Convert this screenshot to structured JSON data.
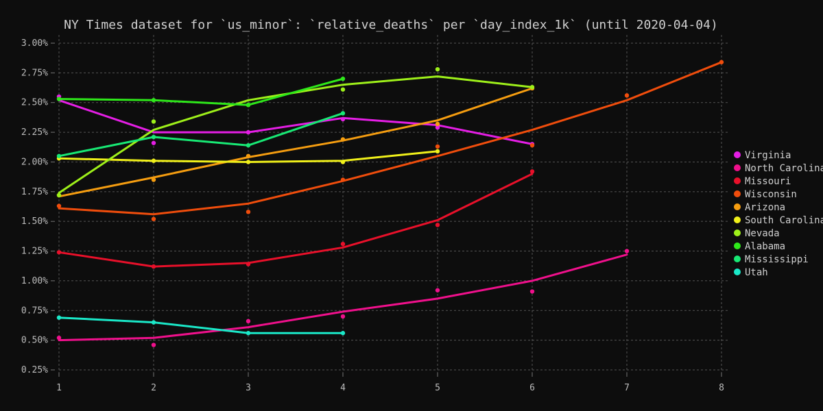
{
  "chart_data": {
    "type": "line",
    "title": "NY Times dataset for `us_minor`: `relative_deaths` per `day_index_1k` (until 2020-04-04)",
    "xlabel": "",
    "ylabel": "",
    "xlim": [
      1,
      8
    ],
    "ylim": [
      0.25,
      3.0
    ],
    "x_ticks": [
      1,
      2,
      3,
      4,
      5,
      6,
      7,
      8
    ],
    "y_ticks": [
      0.25,
      0.5,
      0.75,
      1.0,
      1.25,
      1.5,
      1.75,
      2.0,
      2.25,
      2.5,
      2.75,
      3.0
    ],
    "y_tick_labels": [
      "0.25%",
      "0.50%",
      "0.75%",
      "1.00%",
      "1.25%",
      "1.50%",
      "1.75%",
      "2.00%",
      "2.25%",
      "2.50%",
      "2.75%",
      "3.00%"
    ],
    "grid": true,
    "legend_position": "right",
    "series": [
      {
        "name": "Virginia",
        "color": "#e51ee5",
        "x": [
          1,
          2,
          3,
          4,
          5,
          6
        ],
        "points": [
          2.55,
          2.16,
          2.25,
          2.36,
          2.29,
          2.15
        ],
        "trend": [
          2.52,
          2.25,
          2.25,
          2.37,
          2.31,
          2.15
        ]
      },
      {
        "name": "North Carolina",
        "color": "#f0108c",
        "x": [
          1,
          2,
          3,
          4,
          5,
          6,
          7
        ],
        "points": [
          0.52,
          0.46,
          0.66,
          0.7,
          0.92,
          0.91,
          1.25
        ],
        "trend": [
          0.5,
          0.52,
          0.61,
          0.74,
          0.85,
          1.0,
          1.22
        ]
      },
      {
        "name": "Missouri",
        "color": "#e8102a",
        "x": [
          1,
          2,
          3,
          4,
          5,
          6
        ],
        "points": [
          1.24,
          1.12,
          1.14,
          1.31,
          1.47,
          1.92
        ],
        "trend": [
          1.24,
          1.12,
          1.15,
          1.28,
          1.51,
          1.9
        ]
      },
      {
        "name": "Wisconsin",
        "color": "#f04d0c",
        "x": [
          1,
          2,
          3,
          4,
          5,
          6,
          7,
          8
        ],
        "points": [
          1.63,
          1.52,
          1.58,
          1.85,
          2.13,
          2.14,
          2.56,
          2.84
        ],
        "trend": [
          1.61,
          1.56,
          1.65,
          1.84,
          2.05,
          2.27,
          2.52,
          2.84
        ]
      },
      {
        "name": "Arizona",
        "color": "#f59d10",
        "x": [
          1,
          2,
          3,
          4,
          5,
          6
        ],
        "points": [
          1.72,
          1.85,
          2.05,
          2.19,
          2.32,
          2.62
        ],
        "trend": [
          1.71,
          1.87,
          2.04,
          2.18,
          2.35,
          2.62
        ]
      },
      {
        "name": "South Carolina",
        "color": "#f0f01a",
        "x": [
          1,
          2,
          3,
          4,
          5
        ],
        "points": [
          2.03,
          2.01,
          2.0,
          2.0,
          2.09
        ],
        "trend": [
          2.03,
          2.01,
          2.0,
          2.01,
          2.09
        ]
      },
      {
        "name": "Nevada",
        "color": "#9ef01a",
        "x": [
          1,
          2,
          3,
          4,
          5,
          6
        ],
        "points": [
          1.72,
          2.34,
          2.48,
          2.61,
          2.78,
          2.63
        ],
        "trend": [
          1.74,
          2.27,
          2.52,
          2.65,
          2.72,
          2.63
        ]
      },
      {
        "name": "Alabama",
        "color": "#2ee81a",
        "x": [
          1,
          2,
          3,
          4
        ],
        "points": [
          2.53,
          2.52,
          2.48,
          2.7
        ],
        "trend": [
          2.53,
          2.52,
          2.48,
          2.7
        ]
      },
      {
        "name": "Mississippi",
        "color": "#18e874",
        "x": [
          1,
          2,
          3,
          4
        ],
        "points": [
          2.05,
          2.21,
          2.14,
          2.41
        ],
        "trend": [
          2.05,
          2.21,
          2.14,
          2.41
        ]
      },
      {
        "name": "Utah",
        "color": "#1ae8c8",
        "x": [
          1,
          2,
          3,
          4
        ],
        "points": [
          0.69,
          0.65,
          0.56,
          0.56
        ],
        "trend": [
          0.69,
          0.65,
          0.56,
          0.56
        ]
      }
    ]
  }
}
